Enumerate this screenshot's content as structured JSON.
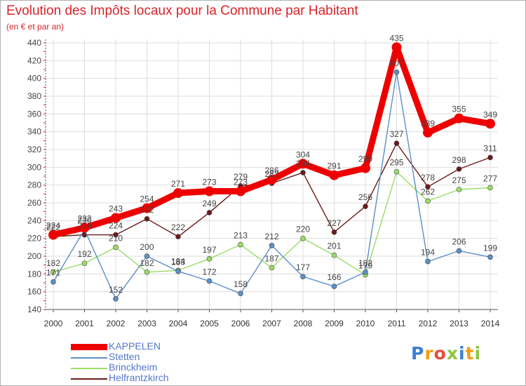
{
  "chart_data": {
    "type": "line",
    "title": "Evolution des Impôts locaux pour la Commune par Habitant",
    "subtitle": "(en € et par an)",
    "xlabel": "",
    "ylabel": "",
    "ylim": [
      140,
      440
    ],
    "y_ticks": [
      "140",
      "160",
      "180",
      "200",
      "220",
      "240",
      "260",
      "280",
      "300",
      "320",
      "340",
      "360",
      "380",
      "400",
      "420",
      "440"
    ],
    "x": [
      "2000",
      "2001",
      "2002",
      "2003",
      "2004",
      "2005",
      "2006",
      "2007",
      "2008",
      "2009",
      "2010",
      "2011",
      "2012",
      "2013",
      "2014"
    ],
    "grid": true,
    "legend_position": "bottom-left",
    "series": [
      {
        "name": "Helfrantzkirch",
        "color": "#6b1a1a",
        "values": [
          222,
          224,
          224,
          242,
          222,
          249,
          279,
          282,
          294,
          227,
          256,
          327,
          278,
          298,
          311
        ]
      },
      {
        "name": "Brinckheim",
        "color": "#99dd66",
        "values": [
          182,
          192,
          210,
          182,
          184,
          197,
          213,
          187,
          220,
          201,
          179,
          295,
          262,
          275,
          277
        ]
      },
      {
        "name": "Stetten",
        "color": "#5b8fc7",
        "values": [
          171,
          230,
          152,
          200,
          183,
          172,
          158,
          212,
          177,
          166,
          182,
          407,
          194,
          206,
          199
        ]
      },
      {
        "name": "KAPPELEN",
        "color": "#ee0000",
        "values": [
          224,
          232,
          243,
          254,
          271,
          273,
          273,
          286,
          304,
          291,
          299,
          435,
          339,
          355,
          349
        ]
      }
    ]
  },
  "legend": {
    "items": [
      {
        "label": "KAPPELEN",
        "color": "#ee0000"
      },
      {
        "label": "Stetten",
        "color": "#5b8fc7"
      },
      {
        "label": "Brinckheim",
        "color": "#99dd66"
      },
      {
        "label": "Helfrantzkirch",
        "color": "#6b1a1a"
      }
    ]
  },
  "logo": {
    "text": "Proxiti",
    "letters": [
      "P",
      "r",
      "o",
      "x",
      "i",
      "t",
      "i"
    ],
    "colors": [
      "#3a7fd5",
      "#f39c12",
      "#e74c3c",
      "#8cc63f",
      "#3a7fd5",
      "#f39c12",
      "#8cc63f"
    ]
  }
}
